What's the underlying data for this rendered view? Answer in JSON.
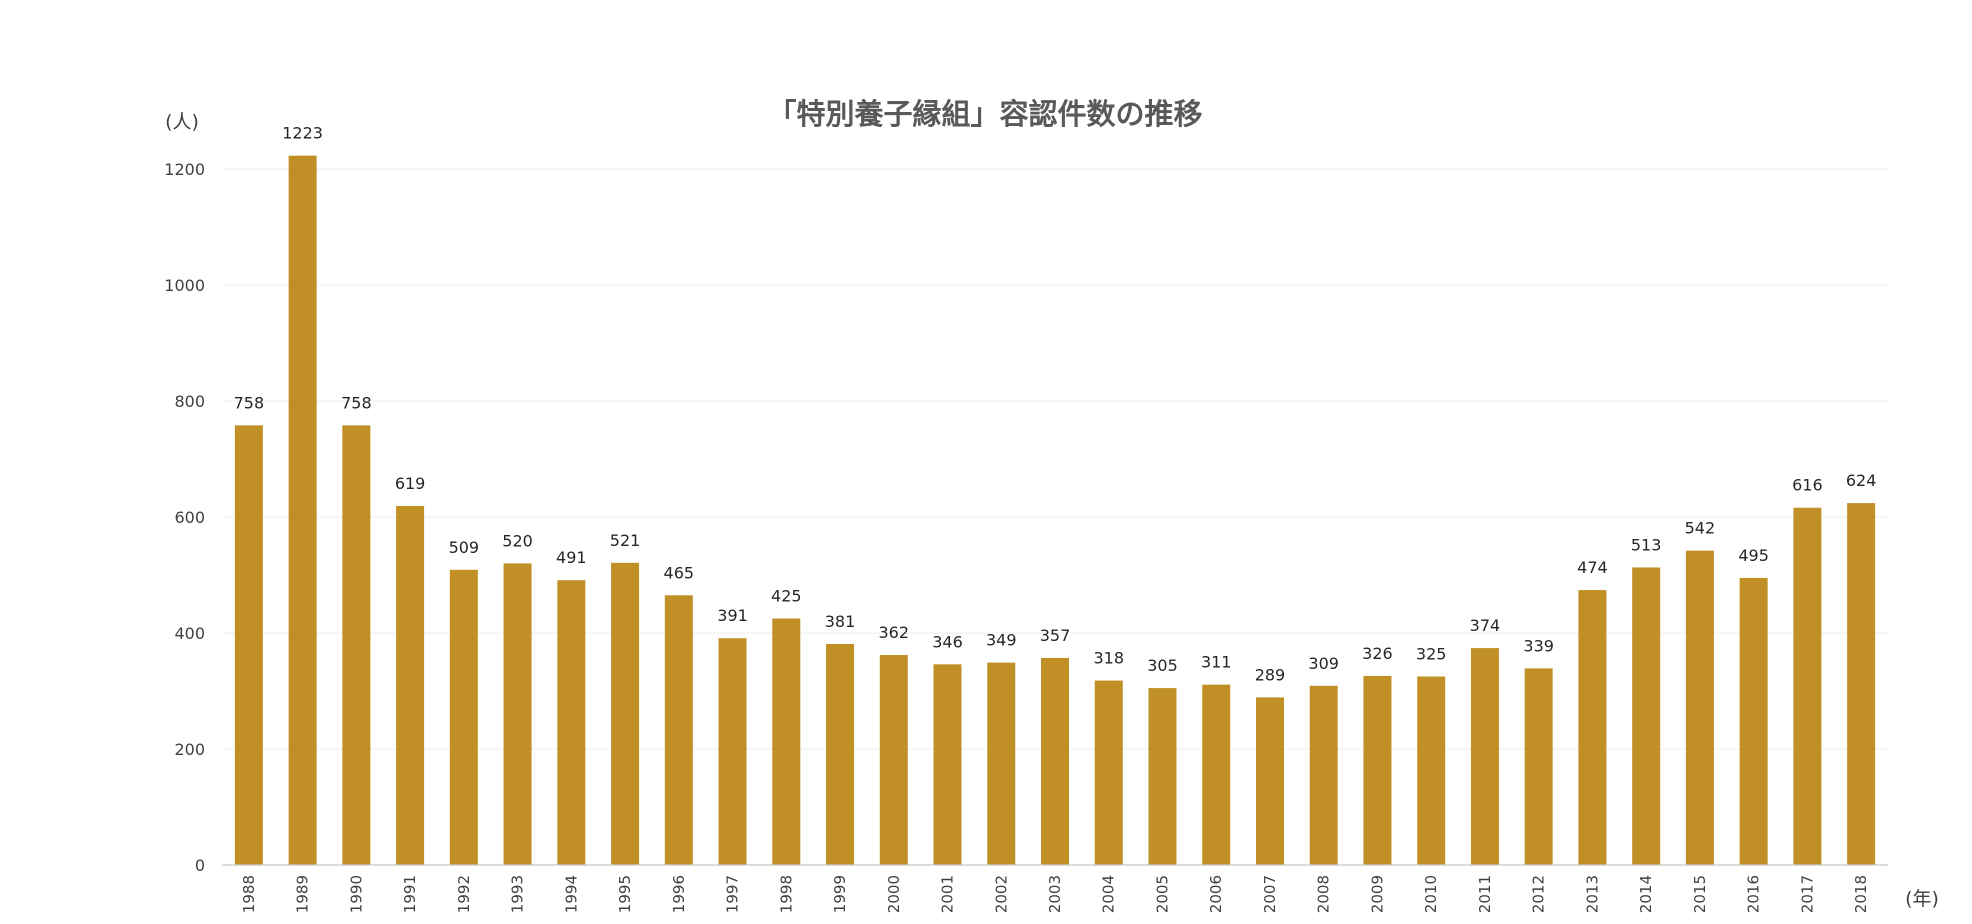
{
  "chart_data": {
    "type": "bar",
    "title": "「特別養子縁組」容認件数の推移",
    "y_unit": "(人)",
    "x_unit": "(年)",
    "ylim": [
      0,
      1200
    ],
    "yticks": [
      0,
      200,
      400,
      600,
      800,
      1000,
      1200
    ],
    "grid": true,
    "legend": "none",
    "bar_color": "#C09026",
    "categories": [
      "1988",
      "1989",
      "1990",
      "1991",
      "1992",
      "1993",
      "1994",
      "1995",
      "1996",
      "1997",
      "1998",
      "1999",
      "2000",
      "2001",
      "2002",
      "2003",
      "2004",
      "2005",
      "2006",
      "2007",
      "2008",
      "2009",
      "2010",
      "2011",
      "2012",
      "2013",
      "2014",
      "2015",
      "2016",
      "2017",
      "2018"
    ],
    "values": [
      758,
      1223,
      758,
      619,
      509,
      520,
      491,
      521,
      465,
      391,
      425,
      381,
      362,
      346,
      349,
      357,
      318,
      305,
      311,
      289,
      309,
      326,
      325,
      374,
      339,
      474,
      513,
      542,
      495,
      616,
      624
    ]
  }
}
